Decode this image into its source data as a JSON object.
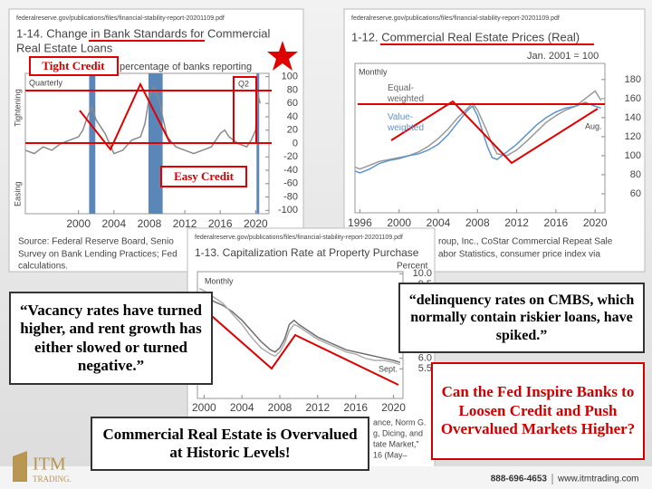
{
  "chart_data": [
    {
      "type": "line",
      "source_url": "federalreserve.gov/publications/files/financial-stability-report-20201109.pdf",
      "title": [
        "1-14. Change in Bank Standards for Commercial",
        "Real Estate Loans"
      ],
      "subtitle": "percentage of banks reporting",
      "frequency": "Quarterly",
      "direction_labels": [
        "Tightening",
        "Easing"
      ],
      "period_label": "Q2",
      "source": [
        "Source: Federal Reserve Board, Senio",
        "Survey on Bank Lending Practices; Fed",
        "calculations."
      ],
      "x": [
        1994,
        1995,
        1996,
        1997,
        1998,
        1999,
        2000,
        2000.5,
        2001,
        2001.5,
        2002,
        2003,
        2004,
        2005,
        2006,
        2007,
        2007.5,
        2008,
        2008.5,
        2009,
        2009.5,
        2010,
        2011,
        2012,
        2013,
        2014,
        2015,
        2016,
        2016.5,
        2017,
        2018,
        2019,
        2019.5,
        2020,
        2020.25,
        2020.5
      ],
      "series": [
        {
          "color": "#8a8a8a",
          "values": [
            -10,
            -15,
            -5,
            -10,
            0,
            5,
            10,
            20,
            40,
            55,
            35,
            15,
            -15,
            -10,
            5,
            10,
            30,
            70,
            85,
            70,
            40,
            10,
            -5,
            -10,
            -15,
            -10,
            -5,
            15,
            20,
            10,
            0,
            -5,
            5,
            20,
            75,
            60
          ]
        }
      ],
      "recessions": [
        {
          "start": 2001.2,
          "end": 2001.9
        },
        {
          "start": 2007.9,
          "end": 2009.5
        },
        {
          "start": 2020.1,
          "end": 2020.4
        }
      ],
      "recession_color": "#5b86b8",
      "xlim": [
        1994,
        2021.5
      ],
      "ylim": [
        -105,
        105
      ],
      "xticks": [
        2000,
        2004,
        2008,
        2012,
        2016,
        2020
      ],
      "yticks": [
        100,
        80,
        60,
        40,
        20,
        0,
        -20,
        -40,
        -60,
        -80,
        -100
      ]
    },
    {
      "type": "line",
      "source_url": "federalreserve.gov/publications/files/financial-stability-report-20201109.pdf",
      "title": [
        "1-12. Commercial Real Estate Prices (Real)"
      ],
      "subtitle": "Jan. 2001 = 100",
      "frequency": "Monthly",
      "period_label": "Aug.",
      "source": [
        "roup, Inc., CoStar Commercial Repeat Sale",
        "abor Statistics, consumer price index via"
      ],
      "x": [
        1995.5,
        1996,
        1997,
        1998,
        1999,
        2000,
        2001,
        2002,
        2003,
        2004,
        2005,
        2006,
        2007,
        2007.5,
        2008,
        2009,
        2009.5,
        2010,
        2011,
        2012,
        2013,
        2014,
        2015,
        2016,
        2017,
        2018,
        2019,
        2020,
        2020.6
      ],
      "series": [
        {
          "name": "Equal-weighted",
          "color": "#9a9a9a",
          "values": [
            88,
            86,
            90,
            94,
            96,
            98,
            100,
            104,
            110,
            118,
            128,
            140,
            150,
            155,
            148,
            125,
            112,
            102,
            100,
            106,
            115,
            125,
            135,
            142,
            148,
            152,
            160,
            168,
            158
          ]
        },
        {
          "name": "Value-weighted",
          "color": "#5f93cf",
          "values": [
            84,
            82,
            86,
            92,
            95,
            97,
            100,
            102,
            106,
            112,
            122,
            135,
            148,
            152,
            142,
            110,
            98,
            96,
            104,
            112,
            122,
            132,
            140,
            146,
            150,
            152,
            156,
            152,
            150
          ]
        }
      ],
      "xlim": [
        1995.5,
        2021
      ],
      "ylim": [
        40,
        197
      ],
      "xticks": [
        1996,
        2000,
        2004,
        2008,
        2012,
        2016,
        2020
      ],
      "yticks": [
        180,
        160,
        140,
        120,
        100,
        80,
        60
      ]
    },
    {
      "type": "line",
      "source_url": "federalreserve.gov/publications/files/financial-stability-report-20201109.pdf",
      "title": [
        "1-13. Capitalization Rate at Property Purchase"
      ],
      "subtitle": "Percent",
      "frequency": "Monthly",
      "period_label": "Sept.",
      "source": [
        "ance, Norm G.",
        "g, Dicing, and",
        "tate Market,”",
        "16 (May–"
      ],
      "x": [
        1999.5,
        2000,
        2001,
        2002,
        2003,
        2004,
        2005,
        2006,
        2007,
        2007.5,
        2008,
        2008.5,
        2009,
        2009.5,
        2010,
        2011,
        2012,
        2013,
        2014,
        2015,
        2016,
        2017,
        2018,
        2019,
        2020,
        2020.7
      ],
      "series": [
        {
          "color": "#6e6e6e",
          "values": [
            9.0,
            8.9,
            8.7,
            8.5,
            8.2,
            7.8,
            7.3,
            6.8,
            6.4,
            6.3,
            6.5,
            6.9,
            7.6,
            7.8,
            7.6,
            7.3,
            7.0,
            6.8,
            6.6,
            6.4,
            6.3,
            6.2,
            6.1,
            6.0,
            5.9,
            5.8
          ]
        },
        {
          "color": "#adadad",
          "values": [
            9.3,
            9.2,
            8.9,
            8.6,
            8.1,
            7.6,
            7.0,
            6.5,
            6.2,
            6.1,
            6.3,
            6.7,
            7.3,
            7.6,
            7.5,
            7.2,
            6.9,
            6.7,
            6.5,
            6.3,
            6.2,
            6.0,
            5.9,
            5.9,
            5.8,
            5.7
          ]
        }
      ],
      "xlim": [
        1999.3,
        2021
      ],
      "ylim": [
        4.1,
        10.1
      ],
      "xticks": [
        2000,
        2004,
        2008,
        2012,
        2016,
        2020
      ],
      "yticks": [
        {
          "value": 10,
          "label": "10.0"
        },
        9.5,
        {
          "value": 9,
          "label": "9.0"
        },
        8.5,
        {
          "value": 8,
          "label": "8.0"
        },
        7.5,
        {
          "value": 7,
          "label": "7.0"
        },
        6.5,
        {
          "value": 6,
          "label": "6.0"
        },
        5.5
      ]
    }
  ],
  "slide": {
    "tight_credit": "Tight Credit",
    "easy_credit": "Easy Credit",
    "quote_vacancy": "“Vacancy rates have turned higher, and rent growth has either slowed or turned negative.”",
    "quote_delinquency": "“delinquency rates on CMBS, which normally contain riskier loans, have spiked.”",
    "question": "Can the Fed Inspire Banks to Loosen Credit and Push Overvalued Markets Higher?",
    "headline": "Commercial Real Estate is Overvalued at Historic Levels!",
    "footer": {
      "logo_main": "ITM",
      "logo_sub": "TRADING.",
      "phone": "888-696-4653",
      "website": "www.itmtrading.com"
    }
  }
}
